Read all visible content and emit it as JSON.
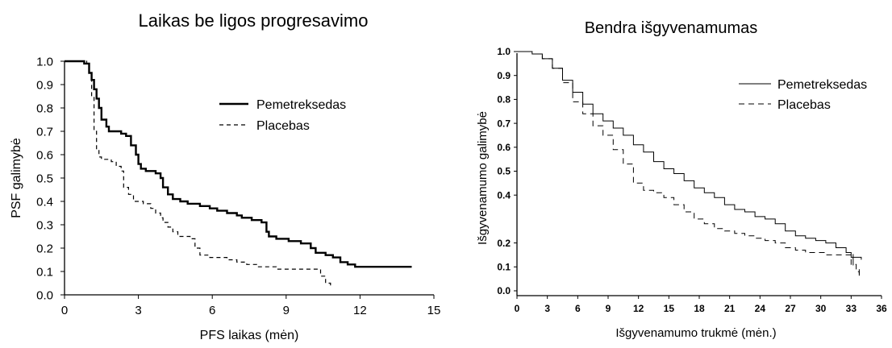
{
  "chart_data": [
    {
      "type": "line",
      "title": "Laikas be ligos progresavimo",
      "xlabel": "PFS laikas (mėn)",
      "ylabel": "PSF  galimybė",
      "xlim": [
        0,
        15
      ],
      "ylim": [
        0,
        1
      ],
      "xticks": [
        "0",
        "3",
        "6",
        "9",
        "12",
        "15"
      ],
      "yticks": [
        "0.0",
        "0.1",
        "0.2",
        "0.3",
        "0.4",
        "0.5",
        "0.6",
        "0.7",
        "0.8",
        "0.9",
        "1.0"
      ],
      "grid": false,
      "legend_position": "top-right",
      "series": [
        {
          "name": "Pemetreksedas",
          "style": "solid-thick",
          "points": [
            [
              0,
              1.0
            ],
            [
              0.7,
              1.0
            ],
            [
              0.8,
              0.99
            ],
            [
              1.0,
              0.95
            ],
            [
              1.1,
              0.92
            ],
            [
              1.2,
              0.88
            ],
            [
              1.3,
              0.84
            ],
            [
              1.4,
              0.8
            ],
            [
              1.5,
              0.75
            ],
            [
              1.7,
              0.72
            ],
            [
              1.8,
              0.7
            ],
            [
              2.3,
              0.69
            ],
            [
              2.5,
              0.68
            ],
            [
              2.7,
              0.64
            ],
            [
              2.9,
              0.6
            ],
            [
              3.0,
              0.56
            ],
            [
              3.1,
              0.54
            ],
            [
              3.3,
              0.53
            ],
            [
              3.7,
              0.52
            ],
            [
              3.9,
              0.5
            ],
            [
              4.0,
              0.46
            ],
            [
              4.2,
              0.43
            ],
            [
              4.4,
              0.41
            ],
            [
              4.7,
              0.4
            ],
            [
              5.0,
              0.39
            ],
            [
              5.5,
              0.38
            ],
            [
              5.9,
              0.37
            ],
            [
              6.2,
              0.36
            ],
            [
              6.6,
              0.35
            ],
            [
              7.0,
              0.34
            ],
            [
              7.2,
              0.33
            ],
            [
              7.6,
              0.32
            ],
            [
              8.0,
              0.31
            ],
            [
              8.2,
              0.27
            ],
            [
              8.3,
              0.25
            ],
            [
              8.6,
              0.24
            ],
            [
              9.1,
              0.23
            ],
            [
              9.6,
              0.22
            ],
            [
              10.0,
              0.2
            ],
            [
              10.2,
              0.18
            ],
            [
              10.6,
              0.17
            ],
            [
              10.9,
              0.16
            ],
            [
              11.2,
              0.14
            ],
            [
              11.5,
              0.13
            ],
            [
              11.8,
              0.12
            ],
            [
              14.1,
              0.12
            ]
          ]
        },
        {
          "name": "Placebas",
          "style": "dashed",
          "points": [
            [
              0,
              1.0
            ],
            [
              0.6,
              1.0
            ],
            [
              0.9,
              0.99
            ],
            [
              1.0,
              0.95
            ],
            [
              1.1,
              0.85
            ],
            [
              1.2,
              0.7
            ],
            [
              1.3,
              0.62
            ],
            [
              1.4,
              0.59
            ],
            [
              1.5,
              0.58
            ],
            [
              1.9,
              0.57
            ],
            [
              2.1,
              0.55
            ],
            [
              2.3,
              0.53
            ],
            [
              2.4,
              0.46
            ],
            [
              2.6,
              0.43
            ],
            [
              2.8,
              0.4
            ],
            [
              3.2,
              0.39
            ],
            [
              3.5,
              0.37
            ],
            [
              3.7,
              0.35
            ],
            [
              3.9,
              0.33
            ],
            [
              4.0,
              0.31
            ],
            [
              4.2,
              0.29
            ],
            [
              4.4,
              0.27
            ],
            [
              4.6,
              0.25
            ],
            [
              5.1,
              0.24
            ],
            [
              5.3,
              0.2
            ],
            [
              5.5,
              0.17
            ],
            [
              5.9,
              0.16
            ],
            [
              6.6,
              0.15
            ],
            [
              7.0,
              0.14
            ],
            [
              7.4,
              0.13
            ],
            [
              7.8,
              0.12
            ],
            [
              8.6,
              0.11
            ],
            [
              10.1,
              0.11
            ],
            [
              10.4,
              0.08
            ],
            [
              10.6,
              0.05
            ],
            [
              10.8,
              0.04
            ]
          ]
        }
      ]
    },
    {
      "type": "line",
      "title": "Bendra išgyvenamumas",
      "xlabel": "Išgyvenamumo trukmė (mėn.)",
      "ylabel": "Išgyvenamumo galimybė",
      "xlim": [
        0,
        36
      ],
      "ylim": [
        0,
        1
      ],
      "xticks": [
        "0",
        "3",
        "6",
        "9",
        "12",
        "15",
        "18",
        "21",
        "24",
        "27",
        "30",
        "33",
        "36"
      ],
      "yticks": [
        "0.0",
        "0.1",
        "0.2",
        "0.4",
        "0.5",
        "0.6",
        "0.7",
        "0.8",
        "0.9",
        "1.0"
      ],
      "ytick_values": [
        0,
        0.1,
        0.2,
        0.4,
        0.5,
        0.6,
        0.7,
        0.8,
        0.9,
        1.0
      ],
      "grid": false,
      "legend_position": "top-right",
      "series": [
        {
          "name": "Pemetreksedas",
          "style": "solid-thin",
          "points": [
            [
              0,
              1.0
            ],
            [
              0.5,
              1.0
            ],
            [
              1.5,
              0.99
            ],
            [
              2.5,
              0.97
            ],
            [
              3.5,
              0.93
            ],
            [
              4.5,
              0.88
            ],
            [
              5.5,
              0.83
            ],
            [
              6.5,
              0.78
            ],
            [
              7.5,
              0.74
            ],
            [
              8.5,
              0.71
            ],
            [
              9.5,
              0.68
            ],
            [
              10.5,
              0.65
            ],
            [
              11.5,
              0.61
            ],
            [
              12.5,
              0.58
            ],
            [
              13.5,
              0.54
            ],
            [
              14.5,
              0.51
            ],
            [
              15.5,
              0.49
            ],
            [
              16.5,
              0.46
            ],
            [
              17.5,
              0.43
            ],
            [
              18.5,
              0.41
            ],
            [
              19.5,
              0.39
            ],
            [
              20.5,
              0.36
            ],
            [
              21.5,
              0.34
            ],
            [
              22.5,
              0.33
            ],
            [
              23.5,
              0.31
            ],
            [
              24.5,
              0.3
            ],
            [
              25.5,
              0.28
            ],
            [
              26.5,
              0.25
            ],
            [
              27.5,
              0.23
            ],
            [
              28.5,
              0.22
            ],
            [
              29.5,
              0.21
            ],
            [
              30.5,
              0.2
            ],
            [
              31.5,
              0.18
            ],
            [
              32.5,
              0.16
            ],
            [
              33.0,
              0.14
            ],
            [
              34.0,
              0.13
            ]
          ]
        },
        {
          "name": "Placebas",
          "style": "dashed",
          "points": [
            [
              0,
              1.0
            ],
            [
              0.5,
              1.0
            ],
            [
              1.5,
              0.99
            ],
            [
              2.5,
              0.97
            ],
            [
              3.5,
              0.93
            ],
            [
              4.5,
              0.87
            ],
            [
              5.5,
              0.79
            ],
            [
              6.5,
              0.74
            ],
            [
              7.5,
              0.69
            ],
            [
              8.5,
              0.65
            ],
            [
              9.5,
              0.59
            ],
            [
              10.5,
              0.53
            ],
            [
              11.5,
              0.45
            ],
            [
              12.5,
              0.42
            ],
            [
              13.5,
              0.41
            ],
            [
              14.5,
              0.39
            ],
            [
              15.5,
              0.36
            ],
            [
              16.5,
              0.33
            ],
            [
              17.5,
              0.3
            ],
            [
              18.5,
              0.28
            ],
            [
              19.5,
              0.26
            ],
            [
              20.5,
              0.25
            ],
            [
              21.5,
              0.24
            ],
            [
              22.5,
              0.23
            ],
            [
              23.5,
              0.22
            ],
            [
              24.5,
              0.21
            ],
            [
              25.5,
              0.2
            ],
            [
              26.5,
              0.18
            ],
            [
              27.5,
              0.17
            ],
            [
              28.5,
              0.16
            ],
            [
              30.5,
              0.15
            ],
            [
              32.0,
              0.15
            ],
            [
              33.0,
              0.11
            ],
            [
              33.5,
              0.08
            ],
            [
              33.8,
              0.07
            ]
          ]
        }
      ]
    }
  ]
}
